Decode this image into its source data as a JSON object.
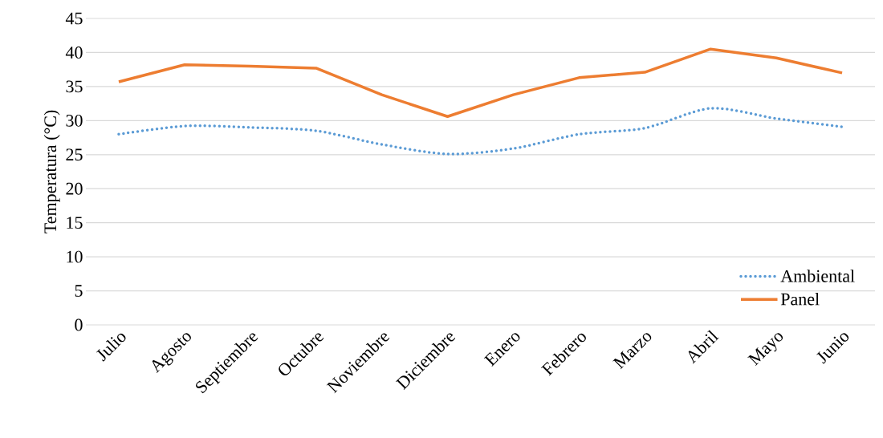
{
  "chart_data": {
    "type": "line",
    "ylabel": "Temperatura (°C)",
    "categories": [
      "Julio",
      "Agosto",
      "Septiembre",
      "Octubre",
      "Noviembre",
      "Diciembre",
      "Enero",
      "Febrero",
      "Marzo",
      "Abril",
      "Mayo",
      "Junio"
    ],
    "series": [
      {
        "name": "Ambiental",
        "color": "#5b9bd5",
        "line_style": "dotted",
        "values": [
          28.0,
          29.2,
          29.0,
          28.5,
          26.5,
          25.1,
          25.9,
          28.0,
          28.9,
          31.8,
          30.3,
          29.1
        ]
      },
      {
        "name": "Panel",
        "color": "#ed7d31",
        "line_style": "solid",
        "values": [
          35.7,
          38.2,
          38.0,
          37.7,
          33.8,
          30.6,
          33.8,
          36.3,
          37.1,
          40.5,
          39.2,
          37.0
        ]
      }
    ],
    "ylim": [
      0,
      45
    ],
    "yticks": [
      0,
      5,
      10,
      15,
      20,
      25,
      30,
      35,
      40,
      45
    ],
    "grid": "y",
    "legend": "bottom right"
  }
}
